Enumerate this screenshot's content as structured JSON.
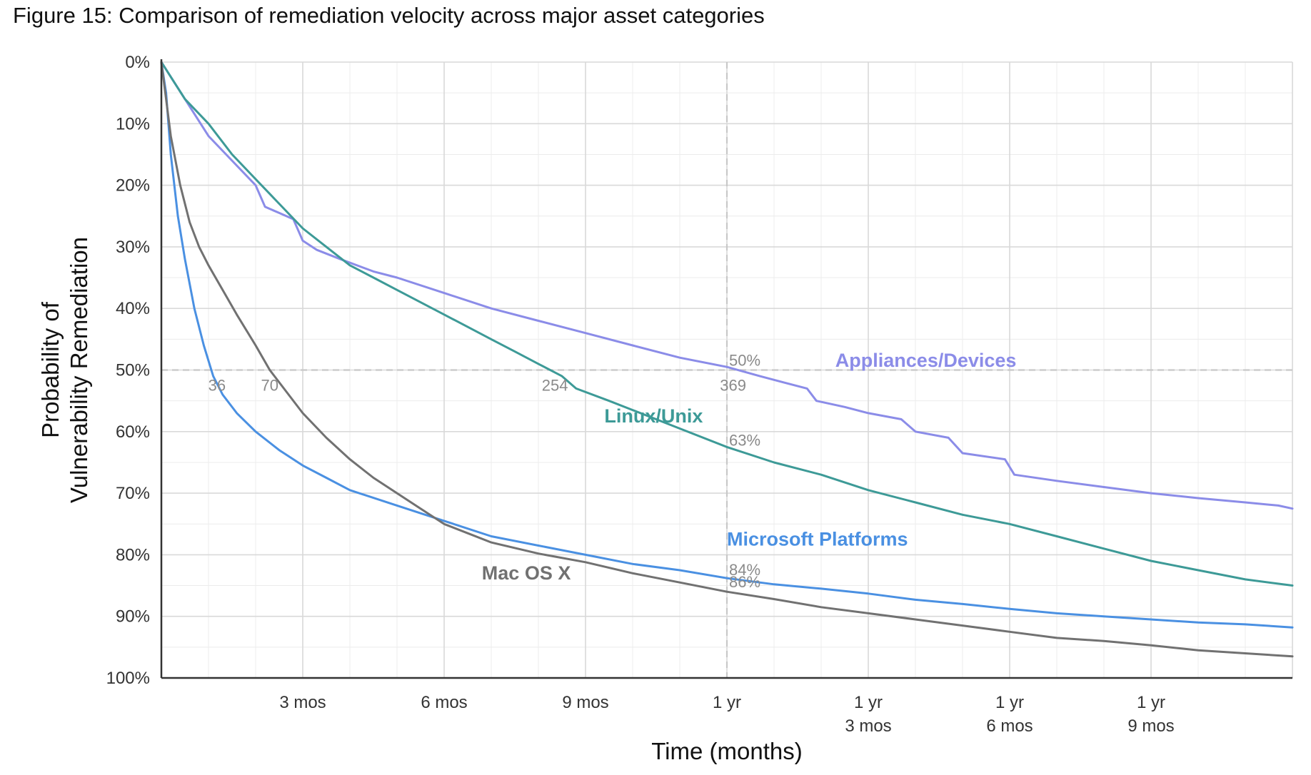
{
  "figure": {
    "caption": "Figure 15: Comparison of remediation velocity across major asset categories"
  },
  "chart_data": {
    "type": "line",
    "title": "Figure 15: Comparison of remediation velocity across major asset categories",
    "xlabel": "Time (months)",
    "ylabel_lines": [
      "Probability of",
      "Vulnerability Remediation"
    ],
    "xlim": [
      0,
      24
    ],
    "ylim": [
      0,
      100
    ],
    "y_inverted": true,
    "grid": true,
    "x_ticks": [
      {
        "x": 3,
        "lines": [
          "3 mos"
        ]
      },
      {
        "x": 6,
        "lines": [
          "6 mos"
        ]
      },
      {
        "x": 9,
        "lines": [
          "9 mos"
        ]
      },
      {
        "x": 12,
        "lines": [
          "1 yr"
        ]
      },
      {
        "x": 15,
        "lines": [
          "1 yr",
          "3 mos"
        ]
      },
      {
        "x": 18,
        "lines": [
          "1 yr",
          "6 mos"
        ]
      },
      {
        "x": 21,
        "lines": [
          "1 yr",
          "9 mos"
        ]
      }
    ],
    "y_ticks": [
      {
        "y": 0,
        "label": "0%"
      },
      {
        "y": 10,
        "label": "10%"
      },
      {
        "y": 20,
        "label": "20%"
      },
      {
        "y": 30,
        "label": "30%"
      },
      {
        "y": 40,
        "label": "40%"
      },
      {
        "y": 50,
        "label": "50%"
      },
      {
        "y": 60,
        "label": "60%"
      },
      {
        "y": 70,
        "label": "70%"
      },
      {
        "y": 80,
        "label": "80%"
      },
      {
        "y": 90,
        "label": "90%"
      },
      {
        "y": 100,
        "label": "100%"
      }
    ],
    "reference_lines": {
      "x": 12,
      "y": 50
    },
    "half_life_markers": [
      {
        "x": 1.18,
        "label": "36"
      },
      {
        "x": 2.3,
        "label": "70"
      },
      {
        "x": 8.35,
        "label": "254"
      },
      {
        "x": 12.13,
        "label": "369"
      }
    ],
    "one_year_markers": [
      {
        "y": 50,
        "label": "50%"
      },
      {
        "y": 63,
        "label": "63%"
      },
      {
        "y": 84,
        "label": "84%"
      },
      {
        "y": 86,
        "label": "86%"
      }
    ],
    "series": [
      {
        "name": "Appliances/Devices",
        "color": "#8b8ce8",
        "label_at": [
          14.3,
          49.5
        ],
        "points": [
          [
            0,
            0
          ],
          [
            0.25,
            3
          ],
          [
            0.5,
            6
          ],
          [
            0.75,
            9
          ],
          [
            1.0,
            12
          ],
          [
            1.5,
            16
          ],
          [
            2.0,
            20
          ],
          [
            2.2,
            23.5
          ],
          [
            2.5,
            24.5
          ],
          [
            2.8,
            25.5
          ],
          [
            3.0,
            29
          ],
          [
            3.3,
            30.5
          ],
          [
            3.8,
            32
          ],
          [
            4.5,
            34
          ],
          [
            5.0,
            35
          ],
          [
            6.0,
            37.5
          ],
          [
            7.0,
            40
          ],
          [
            8.0,
            42
          ],
          [
            9.0,
            44
          ],
          [
            10.0,
            46
          ],
          [
            11.0,
            48
          ],
          [
            12.0,
            49.5
          ],
          [
            12.7,
            51
          ],
          [
            13.2,
            52
          ],
          [
            13.7,
            53
          ],
          [
            13.9,
            55
          ],
          [
            14.5,
            56
          ],
          [
            15.0,
            57
          ],
          [
            15.7,
            58
          ],
          [
            16.0,
            60
          ],
          [
            16.7,
            61
          ],
          [
            17.0,
            63.5
          ],
          [
            17.9,
            64.5
          ],
          [
            18.1,
            67
          ],
          [
            19.0,
            68
          ],
          [
            20.0,
            69
          ],
          [
            21.0,
            70
          ],
          [
            22.0,
            70.8
          ],
          [
            23.0,
            71.5
          ],
          [
            23.7,
            72
          ],
          [
            24.0,
            72.5
          ]
        ]
      },
      {
        "name": "Linux/Unix",
        "color": "#3d9a97",
        "label_at": [
          9.4,
          58.5
        ],
        "points": [
          [
            0,
            0
          ],
          [
            0.25,
            3
          ],
          [
            0.5,
            6
          ],
          [
            1.0,
            10
          ],
          [
            1.5,
            15
          ],
          [
            2.0,
            19
          ],
          [
            2.5,
            23
          ],
          [
            3.0,
            27
          ],
          [
            3.5,
            30
          ],
          [
            4.0,
            33
          ],
          [
            4.5,
            35
          ],
          [
            5.0,
            37
          ],
          [
            5.5,
            39
          ],
          [
            6.0,
            41
          ],
          [
            6.5,
            43
          ],
          [
            7.0,
            45
          ],
          [
            7.5,
            47
          ],
          [
            8.0,
            49
          ],
          [
            8.5,
            51
          ],
          [
            8.8,
            53
          ],
          [
            9.5,
            55
          ],
          [
            10.0,
            56.5
          ],
          [
            11.0,
            59.5
          ],
          [
            12.0,
            62.5
          ],
          [
            13.0,
            65
          ],
          [
            14.0,
            67
          ],
          [
            15.0,
            69.5
          ],
          [
            16.0,
            71.5
          ],
          [
            17.0,
            73.5
          ],
          [
            18.0,
            75
          ],
          [
            19.0,
            77
          ],
          [
            20.0,
            79
          ],
          [
            21.0,
            81
          ],
          [
            22.0,
            82.5
          ],
          [
            23.0,
            84
          ],
          [
            24.0,
            85
          ]
        ]
      },
      {
        "name": "Microsoft Platforms",
        "color": "#4a90e2",
        "label_at": [
          12.0,
          78.5
        ],
        "points": [
          [
            0,
            0
          ],
          [
            0.1,
            5
          ],
          [
            0.2,
            15
          ],
          [
            0.35,
            25
          ],
          [
            0.5,
            32
          ],
          [
            0.7,
            40
          ],
          [
            0.9,
            46
          ],
          [
            1.1,
            51
          ],
          [
            1.3,
            54
          ],
          [
            1.6,
            57
          ],
          [
            2.0,
            60
          ],
          [
            2.5,
            63
          ],
          [
            3.0,
            65.5
          ],
          [
            3.5,
            67.5
          ],
          [
            4.0,
            69.5
          ],
          [
            5.0,
            72
          ],
          [
            6.0,
            74.5
          ],
          [
            7.0,
            77
          ],
          [
            8.0,
            78.5
          ],
          [
            9.0,
            80
          ],
          [
            10.0,
            81.5
          ],
          [
            11.0,
            82.5
          ],
          [
            12.0,
            83.8
          ],
          [
            13.0,
            84.8
          ],
          [
            14.0,
            85.5
          ],
          [
            15.0,
            86.3
          ],
          [
            16.0,
            87.3
          ],
          [
            17.0,
            88
          ],
          [
            18.0,
            88.8
          ],
          [
            19.0,
            89.5
          ],
          [
            20.0,
            90
          ],
          [
            21.0,
            90.5
          ],
          [
            22.0,
            91
          ],
          [
            23.0,
            91.3
          ],
          [
            24.0,
            91.8
          ]
        ]
      },
      {
        "name": "Mac OS X",
        "color": "#717171",
        "label_at": [
          6.8,
          84.0
        ],
        "points": [
          [
            0,
            0
          ],
          [
            0.2,
            12
          ],
          [
            0.4,
            20
          ],
          [
            0.6,
            26
          ],
          [
            0.8,
            30
          ],
          [
            1.0,
            33
          ],
          [
            1.3,
            37
          ],
          [
            1.6,
            41
          ],
          [
            2.0,
            46
          ],
          [
            2.3,
            50
          ],
          [
            2.7,
            54
          ],
          [
            3.0,
            57
          ],
          [
            3.5,
            61
          ],
          [
            4.0,
            64.5
          ],
          [
            4.5,
            67.5
          ],
          [
            5.0,
            70
          ],
          [
            5.5,
            72.5
          ],
          [
            6.0,
            75
          ],
          [
            6.5,
            76.5
          ],
          [
            7.0,
            78
          ],
          [
            8.0,
            79.8
          ],
          [
            9.0,
            81.2
          ],
          [
            10.0,
            83
          ],
          [
            11.0,
            84.5
          ],
          [
            12.0,
            86
          ],
          [
            13.0,
            87.2
          ],
          [
            14.0,
            88.5
          ],
          [
            15.0,
            89.5
          ],
          [
            16.0,
            90.5
          ],
          [
            17.0,
            91.5
          ],
          [
            18.0,
            92.5
          ],
          [
            19.0,
            93.5
          ],
          [
            20.0,
            94
          ],
          [
            21.0,
            94.7
          ],
          [
            22.0,
            95.5
          ],
          [
            23.0,
            96
          ],
          [
            24.0,
            96.5
          ]
        ]
      }
    ]
  }
}
